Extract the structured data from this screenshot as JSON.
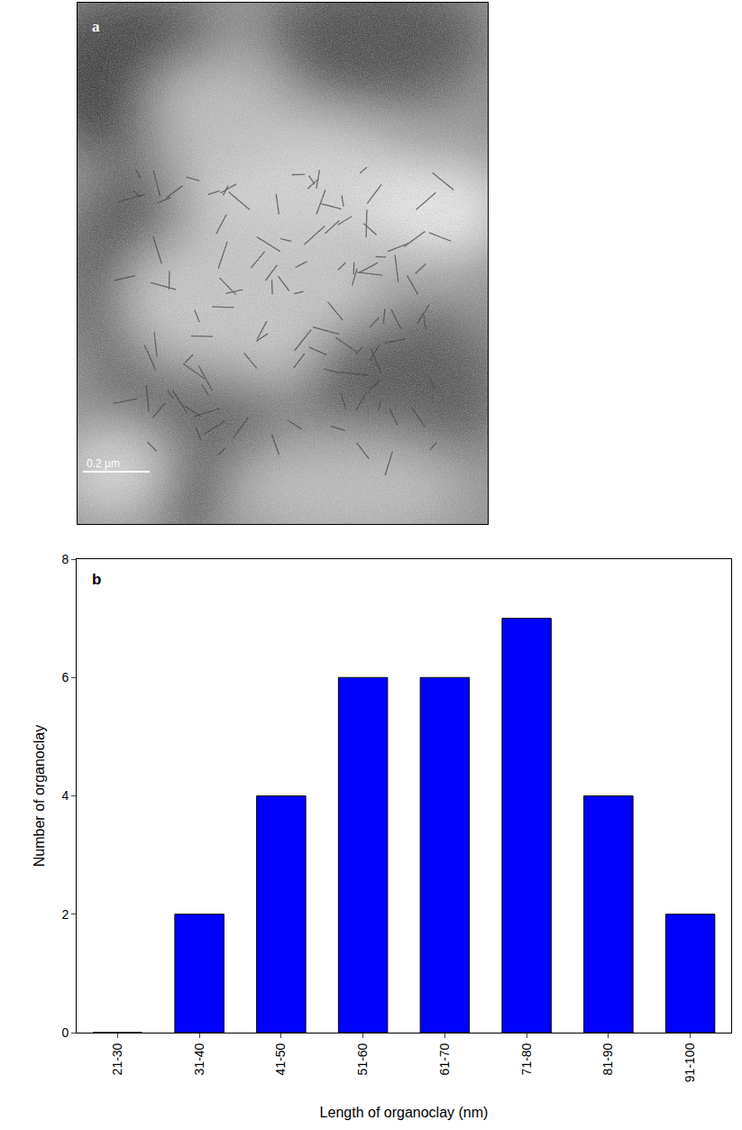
{
  "micrograph": {
    "label": "a",
    "scale_bar": "0.2 µm"
  },
  "chart_data": {
    "type": "bar",
    "annotation": "b",
    "x_label": "Length of organoclay (nm)",
    "y_label": "Number of organoclay",
    "categories": [
      "21-30",
      "31-40",
      "41-50",
      "51-60",
      "61-70",
      "71-80",
      "81-90",
      "91-100"
    ],
    "values": [
      0,
      2,
      4,
      6,
      6,
      7,
      4,
      2
    ],
    "color": "#0000ff",
    "ylim": [
      0,
      8
    ],
    "yticks": [
      0,
      2,
      4,
      6,
      8
    ],
    "grid": false
  }
}
